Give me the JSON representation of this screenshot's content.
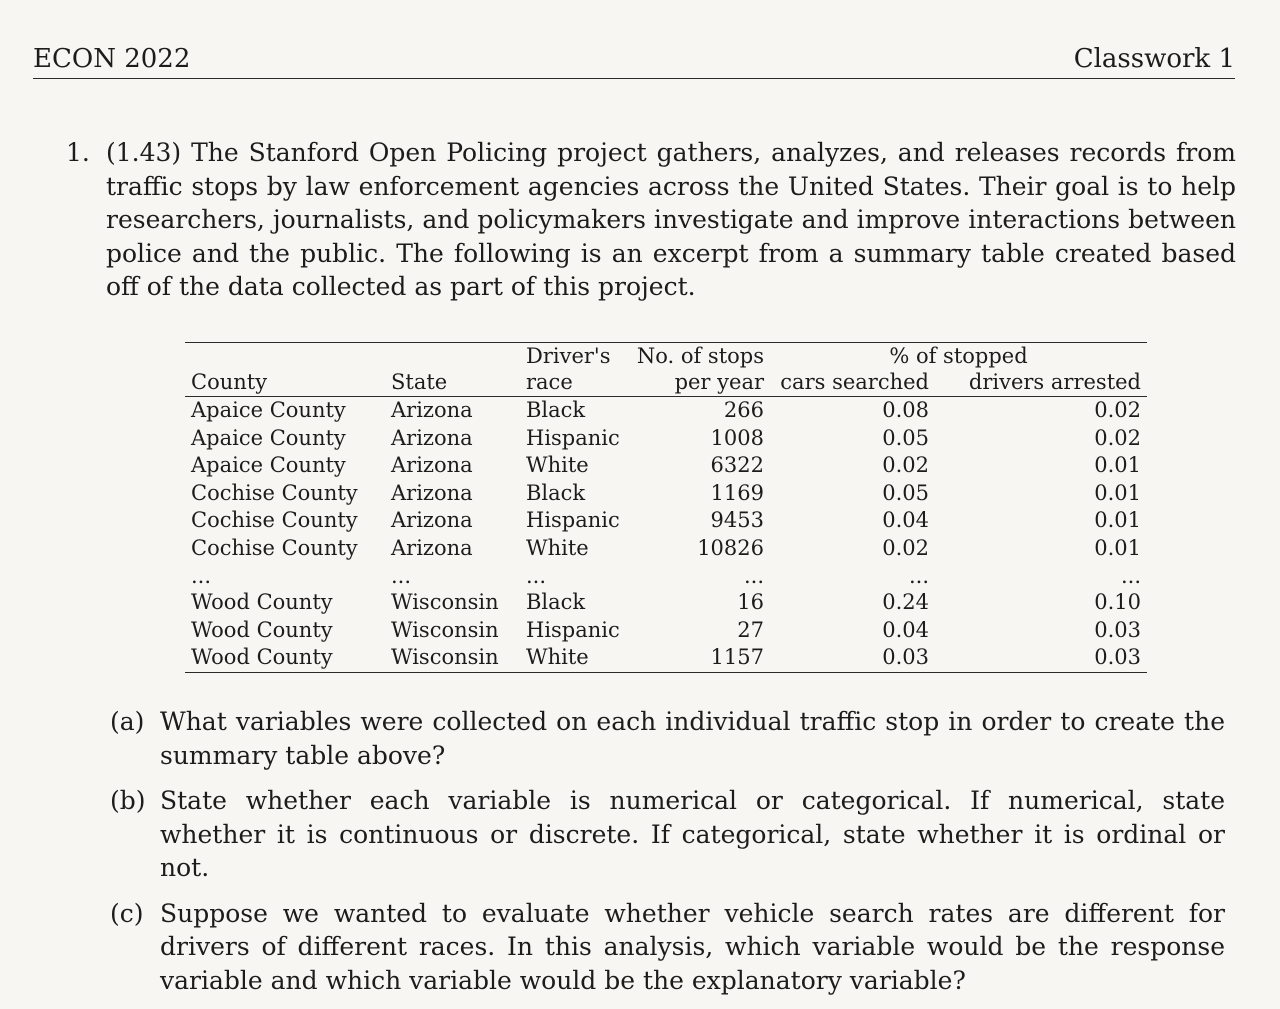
{
  "header": {
    "course": "ECON 2022",
    "assignment": "Classwork 1"
  },
  "problem": {
    "number": "1.",
    "text": "(1.43) The Stanford Open Policing project gathers, analyzes, and releases records from traffic stops by law enforcement agencies across the United States. Their goal is to help researchers, journalists, and policymakers investigate and improve interactions between police and the public. The following is an excerpt from a summary table created based off of the data collected as part of this project."
  },
  "table": {
    "header_top": {
      "race": "Driver's",
      "stops": "No. of stops",
      "pct": "% of stopped"
    },
    "header_bottom": {
      "county": "County",
      "state": "State",
      "race": "race",
      "stops": "per year",
      "searched": "cars searched",
      "arrested": "drivers arrested"
    },
    "rows": [
      {
        "county": "Apaice County",
        "state": "Arizona",
        "race": "Black",
        "stops": "266",
        "searched": "0.08",
        "arrested": "0.02"
      },
      {
        "county": "Apaice County",
        "state": "Arizona",
        "race": "Hispanic",
        "stops": "1008",
        "searched": "0.05",
        "arrested": "0.02"
      },
      {
        "county": "Apaice County",
        "state": "Arizona",
        "race": "White",
        "stops": "6322",
        "searched": "0.02",
        "arrested": "0.01"
      },
      {
        "county": "Cochise County",
        "state": "Arizona",
        "race": "Black",
        "stops": "1169",
        "searched": "0.05",
        "arrested": "0.01"
      },
      {
        "county": "Cochise County",
        "state": "Arizona",
        "race": "Hispanic",
        "stops": "9453",
        "searched": "0.04",
        "arrested": "0.01"
      },
      {
        "county": "Cochise County",
        "state": "Arizona",
        "race": "White",
        "stops": "10826",
        "searched": "0.02",
        "arrested": "0.01"
      },
      {
        "county": "...",
        "state": "...",
        "race": "...",
        "stops": "...",
        "searched": "...",
        "arrested": "..."
      },
      {
        "county": "Wood County",
        "state": "Wisconsin",
        "race": "Black",
        "stops": "16",
        "searched": "0.24",
        "arrested": "0.10"
      },
      {
        "county": "Wood County",
        "state": "Wisconsin",
        "race": "Hispanic",
        "stops": "27",
        "searched": "0.04",
        "arrested": "0.03"
      },
      {
        "county": "Wood County",
        "state": "Wisconsin",
        "race": "White",
        "stops": "1157",
        "searched": "0.03",
        "arrested": "0.03"
      }
    ]
  },
  "subquestions": [
    {
      "label": "(a)",
      "text": "What variables were collected on each individual traffic stop in order to create the summary table above?"
    },
    {
      "label": "(b)",
      "text": "State whether each variable is numerical or categorical. If numerical, state whether it is continuous or discrete. If categorical, state whether it is ordinal or not."
    },
    {
      "label": "(c)",
      "text": "Suppose we wanted to evaluate whether vehicle search rates are different for drivers of different races. In this analysis, which variable would be the response variable and which variable would be the explanatory variable?"
    }
  ]
}
